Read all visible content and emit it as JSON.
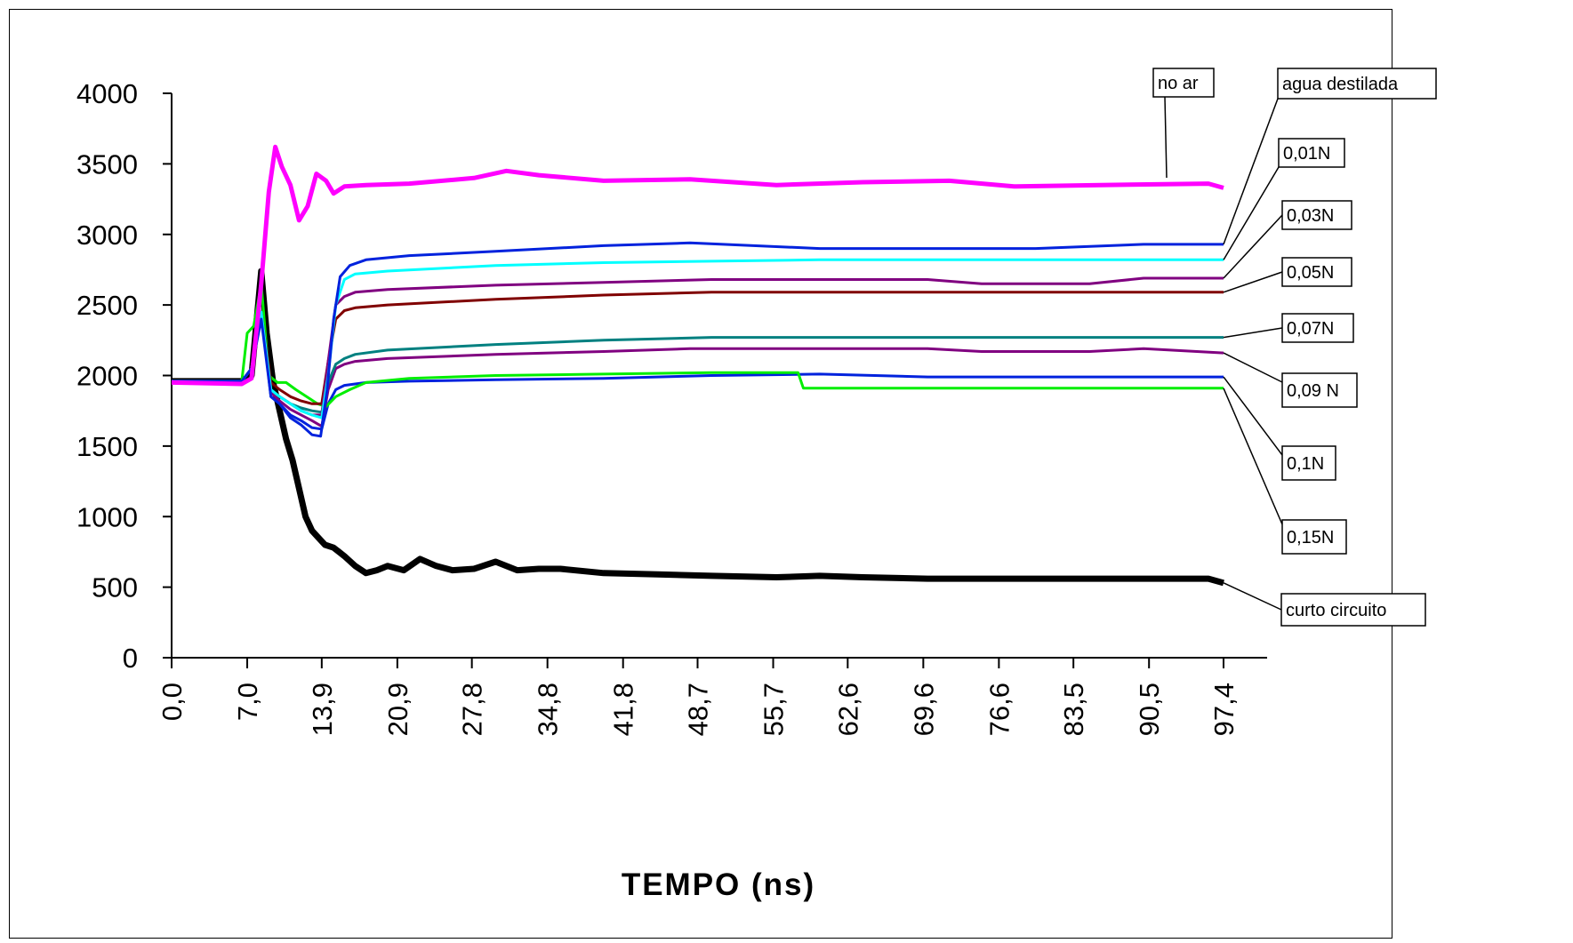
{
  "chart_data": {
    "type": "line",
    "xlabel": "TEMPO (ns)",
    "ylabel": "",
    "xlim": [
      0,
      97.4
    ],
    "ylim": [
      0,
      4000
    ],
    "y_ticks": [
      "0",
      "500",
      "1000",
      "1500",
      "2000",
      "2500",
      "3000",
      "3500",
      "4000"
    ],
    "y_tick_values": [
      0,
      500,
      1000,
      1500,
      2000,
      2500,
      3000,
      3500,
      4000
    ],
    "x_ticks": [
      "0,0",
      "7,0",
      "13,9",
      "20,9",
      "27,8",
      "34,8",
      "41,8",
      "48,7",
      "55,7",
      "62,6",
      "69,6",
      "76,6",
      "83,5",
      "90,5",
      "97,4"
    ],
    "x_tick_values": [
      0,
      7.0,
      13.9,
      20.9,
      27.8,
      34.8,
      41.8,
      48.7,
      55.7,
      62.6,
      69.6,
      76.6,
      83.5,
      90.5,
      97.4
    ],
    "grid": false,
    "legend": "callout labels on the right",
    "series": [
      {
        "name": "no ar",
        "color": "#ff00ff",
        "width": 5,
        "x": [
          0,
          6.5,
          7.4,
          8.3,
          9.0,
          9.6,
          10.2,
          11.0,
          11.8,
          12.6,
          13.4,
          14.3,
          15.0,
          16.0,
          18.0,
          22.0,
          28.0,
          31.0,
          34.0,
          40.0,
          48.0,
          56.0,
          64.0,
          72.0,
          78.0,
          86.0,
          96.0,
          97.4
        ],
        "y": [
          1950,
          1940,
          1980,
          2650,
          3300,
          3620,
          3480,
          3350,
          3100,
          3200,
          3430,
          3380,
          3290,
          3340,
          3350,
          3360,
          3400,
          3450,
          3420,
          3380,
          3390,
          3350,
          3370,
          3380,
          3340,
          3350,
          3360,
          3330
        ]
      },
      {
        "name": "agua destilada",
        "color": "#0022dd",
        "width": 3,
        "x": [
          0,
          6.5,
          7.4,
          8.3,
          9.2,
          10.0,
          11.0,
          12.0,
          13.0,
          13.8,
          14.4,
          15.0,
          15.6,
          16.5,
          18.0,
          22.0,
          30.0,
          40.0,
          48.0,
          60.0,
          70.0,
          80.0,
          90.0,
          97.4
        ],
        "y": [
          1960,
          1960,
          2050,
          2400,
          1850,
          1800,
          1700,
          1650,
          1580,
          1570,
          1900,
          2400,
          2700,
          2780,
          2820,
          2850,
          2880,
          2920,
          2940,
          2900,
          2900,
          2900,
          2930,
          2930
        ]
      },
      {
        "name": "0,01N",
        "color": "#00ffff",
        "width": 3,
        "x": [
          0,
          6.5,
          7.4,
          8.3,
          9.2,
          10.0,
          11.0,
          12.0,
          13.0,
          13.9,
          14.5,
          15.2,
          16.0,
          17.0,
          20.0,
          30.0,
          40.0,
          50.0,
          60.0,
          70.0,
          80.0,
          97.4
        ],
        "y": [
          1960,
          1960,
          2050,
          2450,
          1900,
          1850,
          1800,
          1750,
          1720,
          1700,
          2000,
          2500,
          2680,
          2720,
          2740,
          2780,
          2800,
          2810,
          2820,
          2820,
          2820,
          2820
        ]
      },
      {
        "name": "0,03N",
        "color": "#800080",
        "width": 3,
        "x": [
          0,
          6.5,
          7.4,
          8.3,
          9.2,
          10.0,
          11.0,
          12.0,
          13.0,
          13.9,
          14.5,
          15.2,
          16.0,
          17.0,
          20.0,
          30.0,
          40.0,
          50.0,
          70.0,
          75.0,
          85.0,
          90.0,
          97.4
        ],
        "y": [
          1960,
          1960,
          2050,
          2450,
          1900,
          1850,
          1800,
          1750,
          1720,
          1720,
          2100,
          2500,
          2560,
          2590,
          2610,
          2640,
          2660,
          2680,
          2680,
          2650,
          2650,
          2690,
          2690
        ]
      },
      {
        "name": "0,05N",
        "color": "#800000",
        "width": 3,
        "x": [
          0,
          6.5,
          7.4,
          8.3,
          9.2,
          10.0,
          11.0,
          12.0,
          13.0,
          13.9,
          14.5,
          15.2,
          16.0,
          17.0,
          20.0,
          30.0,
          40.0,
          50.0,
          60.0,
          70.0,
          80.0,
          97.4
        ],
        "y": [
          1960,
          1960,
          2050,
          2450,
          1950,
          1900,
          1850,
          1820,
          1800,
          1800,
          2100,
          2400,
          2460,
          2480,
          2500,
          2540,
          2570,
          2590,
          2590,
          2590,
          2590,
          2590
        ]
      },
      {
        "name": "0,07N",
        "color": "#008080",
        "width": 3,
        "x": [
          0,
          6.5,
          7.4,
          8.3,
          9.2,
          10.0,
          11.0,
          12.0,
          13.0,
          13.9,
          14.5,
          15.2,
          16.0,
          17.0,
          20.0,
          30.0,
          40.0,
          50.0,
          60.0,
          70.0,
          80.0,
          97.4
        ],
        "y": [
          1960,
          1960,
          2050,
          2450,
          1900,
          1850,
          1800,
          1770,
          1750,
          1740,
          1950,
          2080,
          2120,
          2150,
          2180,
          2220,
          2250,
          2270,
          2270,
          2270,
          2270,
          2270
        ]
      },
      {
        "name": "0,09 N",
        "color": "#800080",
        "width": 3,
        "x": [
          0,
          6.5,
          7.4,
          8.3,
          9.2,
          10.0,
          11.0,
          12.0,
          13.0,
          13.9,
          14.5,
          15.2,
          16.0,
          17.0,
          20.0,
          30.0,
          40.0,
          48.0,
          60.0,
          70.0,
          75.0,
          85.0,
          90.0,
          97.4
        ],
        "y": [
          1960,
          1960,
          2050,
          2450,
          1880,
          1820,
          1760,
          1720,
          1680,
          1640,
          1900,
          2050,
          2080,
          2100,
          2120,
          2150,
          2170,
          2190,
          2190,
          2190,
          2170,
          2170,
          2190,
          2160
        ]
      },
      {
        "name": "0,1N",
        "color": "#0022dd",
        "width": 3,
        "x": [
          0,
          6.5,
          7.4,
          8.3,
          9.2,
          10.0,
          11.0,
          12.0,
          13.0,
          13.9,
          14.5,
          15.2,
          16.0,
          18.0,
          22.0,
          30.0,
          40.0,
          50.0,
          60.0,
          70.0,
          80.0,
          97.4
        ],
        "y": [
          1960,
          1960,
          2050,
          2450,
          1850,
          1800,
          1720,
          1680,
          1630,
          1620,
          1800,
          1900,
          1930,
          1950,
          1960,
          1970,
          1980,
          2000,
          2010,
          1990,
          1990,
          1990
        ]
      },
      {
        "name": "0,15N",
        "color": "#00ee00",
        "width": 3,
        "x": [
          0,
          6.5,
          7.0,
          7.6,
          8.3,
          9.0,
          9.8,
          10.6,
          11.5,
          12.5,
          13.5,
          14.3,
          15.2,
          16.5,
          18.0,
          22.0,
          30.0,
          40.0,
          50.0,
          58.0,
          58.5,
          70.0,
          80.0,
          97.4
        ],
        "y": [
          1960,
          1960,
          2300,
          2350,
          2650,
          2000,
          1950,
          1950,
          1900,
          1850,
          1800,
          1780,
          1850,
          1900,
          1950,
          1980,
          2000,
          2010,
          2020,
          2020,
          1910,
          1910,
          1910,
          1910
        ]
      },
      {
        "name": "curto circuito",
        "color": "#000000",
        "width": 7,
        "x": [
          0,
          6.5,
          7.4,
          8.3,
          8.8,
          9.4,
          10.0,
          10.6,
          11.2,
          11.8,
          12.4,
          13.0,
          13.6,
          14.2,
          15.0,
          16.0,
          17.0,
          18.0,
          19.0,
          20.0,
          21.5,
          23.0,
          24.5,
          26.0,
          28.0,
          30.0,
          32.0,
          34.0,
          36.0,
          40.0,
          45.0,
          50.0,
          56.0,
          60.0,
          64.0,
          70.0,
          80.0,
          90.0,
          96.0,
          97.4
        ],
        "y": [
          1960,
          1960,
          2000,
          2740,
          2300,
          1950,
          1750,
          1550,
          1400,
          1200,
          1000,
          900,
          850,
          800,
          780,
          720,
          650,
          600,
          620,
          650,
          620,
          700,
          650,
          620,
          630,
          680,
          620,
          630,
          630,
          600,
          590,
          580,
          570,
          580,
          570,
          560,
          560,
          560,
          560,
          530
        ]
      }
    ]
  },
  "callouts": [
    "no ar",
    "agua destilada",
    "0,01N",
    "0,03N",
    "0,05N",
    "0,07N",
    "0,09 N",
    "0,1N",
    "0,15N",
    "curto circuito"
  ]
}
